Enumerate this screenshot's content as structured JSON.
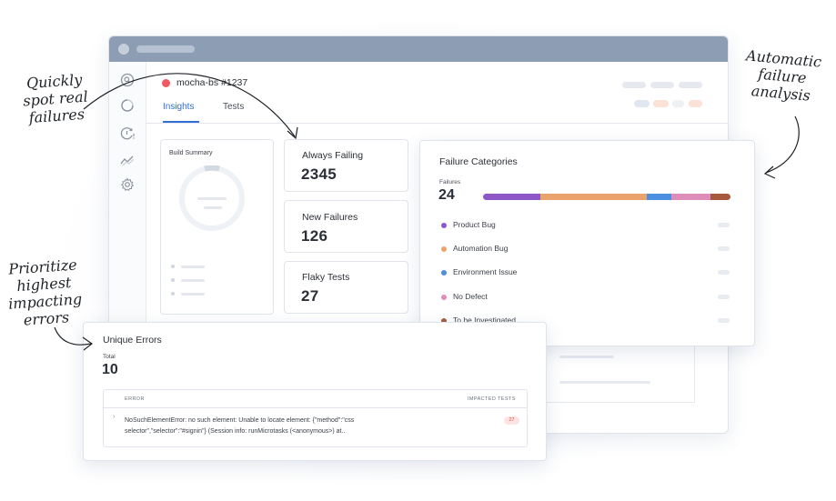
{
  "build": {
    "status_color": "#ef5a63",
    "name": "mocha-bs #1237"
  },
  "tabs": [
    {
      "label": "Insights",
      "active": true
    },
    {
      "label": "Tests",
      "active": false
    }
  ],
  "sidebar": {
    "icons": [
      "search-icon",
      "loading-icon",
      "history-alert-icon",
      "trend-icon",
      "settings-icon"
    ]
  },
  "build_summary": {
    "title": "Build Summary"
  },
  "stats": [
    {
      "label": "Always Failing",
      "value": "2345"
    },
    {
      "label": "New Failures",
      "value": "126"
    },
    {
      "label": "Flaky Tests",
      "value": "27"
    }
  ],
  "failure_categories": {
    "title": "Failure Categories",
    "subtitle": "Failures",
    "count": "24",
    "categories": [
      {
        "label": "Product Bug",
        "color": "#8e57c7",
        "share": 0.23
      },
      {
        "label": "Automation Bug",
        "color": "#eba36e",
        "share": 0.43
      },
      {
        "label": "Environment Issue",
        "color": "#4c8fe0",
        "share": 0.1
      },
      {
        "label": "No Defect",
        "color": "#de8db9",
        "share": 0.16
      },
      {
        "label": "To be Investigated",
        "color": "#a65a3b",
        "share": 0.08
      }
    ]
  },
  "unique_errors": {
    "title": "Unique Errors",
    "subtitle": "Total",
    "count": "10",
    "columns": {
      "error": "ERROR",
      "impacted": "IMPACTED TESTS"
    },
    "rows": [
      {
        "message": "NoSuchElementError: no such element: Unable to locate element: {\"method\":\"css selector\",\"selector\":\"#signin\"} (Session info: runMicrotasks (<anonymous>) at..",
        "impacted": "27"
      }
    ]
  },
  "annotations": {
    "quickly": "Quickly spot real failures",
    "automatic": "Automatic failure analysis",
    "prioritize": "Prioritize highest impacting errors"
  }
}
